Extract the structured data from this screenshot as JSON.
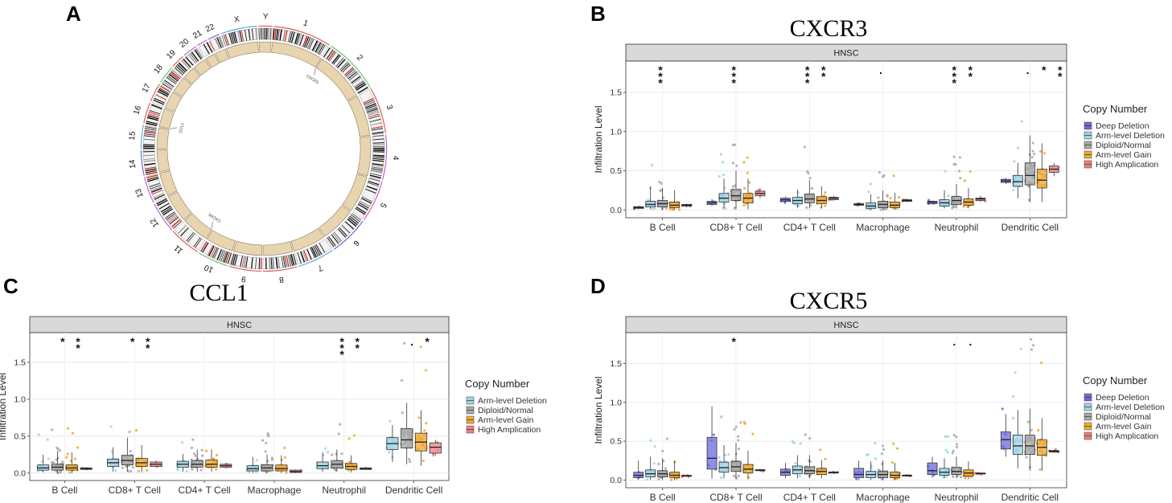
{
  "panel_letters": [
    "A",
    "B",
    "C",
    "D"
  ],
  "circos": {
    "chromosomes": [
      "1",
      "2",
      "3",
      "4",
      "5",
      "6",
      "7",
      "8",
      "9",
      "10",
      "11",
      "12",
      "13",
      "14",
      "15",
      "16",
      "17",
      "18",
      "19",
      "20",
      "21",
      "22",
      "X",
      "Y"
    ],
    "chromosome_sizes": [
      249,
      243,
      198,
      191,
      181,
      171,
      159,
      145,
      138,
      134,
      135,
      133,
      114,
      107,
      102,
      90,
      83,
      80,
      59,
      64,
      47,
      51,
      156,
      57
    ],
    "genes": [
      "CXCR5",
      "CCL1",
      "CXCR3"
    ],
    "colors": {
      "ring_fill": "#e8d5b0",
      "ring_stroke": "#8a7a60"
    }
  },
  "legend": {
    "title": "Copy Number",
    "items": [
      {
        "key": "deep",
        "label": "Deep Deletion",
        "color": "#6a6adc"
      },
      {
        "key": "arm_del",
        "label": "Arm-level Deletion",
        "color": "#9fd3e6"
      },
      {
        "key": "diploid",
        "label": "Diploid/Normal",
        "color": "#a8a8a8"
      },
      {
        "key": "arm_gain",
        "label": "Arm-level Gain",
        "color": "#f0a830"
      },
      {
        "key": "high",
        "label": "High Amplication",
        "color": "#ef7f7f"
      }
    ]
  },
  "chart_data": [
    {
      "panel": "B",
      "type": "boxplot",
      "title": "CXCR3",
      "facet": "HNSC",
      "ylabel": "Infiltration Level",
      "ylim": [
        -0.1,
        1.9
      ],
      "yticks": [
        0.0,
        0.5,
        1.0,
        1.5
      ],
      "categories": [
        "B Cell",
        "CD8+ T Cell",
        "CD4+ T Cell",
        "Macrophage",
        "Neutrophil",
        "Dendritic Cell"
      ],
      "legend_keys": [
        "deep",
        "arm_del",
        "diploid",
        "arm_gain",
        "high"
      ],
      "boxes": [
        [
          [
            0.01,
            0.02,
            0.03,
            0.04,
            0.05
          ],
          [
            0.01,
            0.04,
            0.07,
            0.11,
            0.3
          ],
          [
            0.0,
            0.04,
            0.08,
            0.12,
            0.28
          ],
          [
            0.0,
            0.03,
            0.06,
            0.1,
            0.25
          ],
          [
            0.03,
            0.05,
            0.06,
            0.07,
            0.08
          ]
        ],
        [
          [
            0.05,
            0.07,
            0.09,
            0.11,
            0.14
          ],
          [
            0.02,
            0.1,
            0.15,
            0.21,
            0.4
          ],
          [
            0.02,
            0.12,
            0.18,
            0.26,
            0.5
          ],
          [
            0.01,
            0.09,
            0.15,
            0.21,
            0.4
          ],
          [
            0.15,
            0.18,
            0.21,
            0.24,
            0.28
          ]
        ],
        [
          [
            0.09,
            0.11,
            0.13,
            0.15,
            0.17
          ],
          [
            0.02,
            0.08,
            0.12,
            0.16,
            0.26
          ],
          [
            0.02,
            0.09,
            0.14,
            0.2,
            0.38
          ],
          [
            0.02,
            0.08,
            0.12,
            0.17,
            0.3
          ],
          [
            0.12,
            0.13,
            0.15,
            0.16,
            0.18
          ]
        ],
        [
          [
            0.05,
            0.06,
            0.07,
            0.08,
            0.09
          ],
          [
            0.0,
            0.02,
            0.05,
            0.09,
            0.2
          ],
          [
            0.0,
            0.03,
            0.07,
            0.11,
            0.25
          ],
          [
            0.0,
            0.03,
            0.06,
            0.1,
            0.22
          ],
          [
            0.1,
            0.11,
            0.12,
            0.13,
            0.14
          ]
        ],
        [
          [
            0.07,
            0.08,
            0.1,
            0.11,
            0.12
          ],
          [
            0.02,
            0.05,
            0.09,
            0.13,
            0.25
          ],
          [
            0.02,
            0.07,
            0.12,
            0.17,
            0.33
          ],
          [
            0.02,
            0.06,
            0.1,
            0.14,
            0.28
          ],
          [
            0.1,
            0.12,
            0.14,
            0.15,
            0.18
          ]
        ],
        [
          [
            0.33,
            0.35,
            0.37,
            0.39,
            0.41
          ],
          [
            0.15,
            0.3,
            0.36,
            0.44,
            0.6
          ],
          [
            0.1,
            0.32,
            0.44,
            0.6,
            0.95
          ],
          [
            0.1,
            0.28,
            0.38,
            0.52,
            0.85
          ],
          [
            0.43,
            0.48,
            0.52,
            0.56,
            0.6
          ]
        ]
      ],
      "significance": [
        {
          "category": "B Cell",
          "label": "***"
        },
        {
          "category": "CD8+ T Cell",
          "label": "***"
        },
        {
          "category": "CD4+ T Cell",
          "label": "***"
        },
        {
          "category": "CD4+ T Cell",
          "label": "**"
        },
        {
          "category": "Macrophage",
          "label": "."
        },
        {
          "category": "Neutrophil",
          "label": "***"
        },
        {
          "category": "Neutrophil",
          "label": "**"
        },
        {
          "category": "Dendritic Cell",
          "label": "."
        },
        {
          "category": "Dendritic Cell",
          "label": "*"
        },
        {
          "category": "Dendritic Cell",
          "label": "**"
        }
      ]
    },
    {
      "panel": "C",
      "type": "boxplot",
      "title": "CCL1",
      "facet": "HNSC",
      "ylabel": "Infiltration Level",
      "ylim": [
        -0.1,
        1.9
      ],
      "yticks": [
        0.0,
        0.5,
        1.0,
        1.5
      ],
      "categories": [
        "B Cell",
        "CD8+ T Cell",
        "CD4+ T Cell",
        "Macrophage",
        "Neutrophil",
        "Dendritic Cell"
      ],
      "legend_keys": [
        "arm_del",
        "diploid",
        "arm_gain",
        "high"
      ],
      "boxes": [
        [
          [
            0.01,
            0.04,
            0.07,
            0.11,
            0.25
          ],
          [
            0.0,
            0.04,
            0.08,
            0.12,
            0.3
          ],
          [
            0.0,
            0.04,
            0.07,
            0.11,
            0.28
          ],
          [
            0.04,
            0.05,
            0.06,
            0.07,
            0.08
          ]
        ],
        [
          [
            0.02,
            0.09,
            0.14,
            0.19,
            0.35
          ],
          [
            0.02,
            0.11,
            0.17,
            0.24,
            0.48
          ],
          [
            0.01,
            0.09,
            0.14,
            0.2,
            0.38
          ],
          [
            0.08,
            0.09,
            0.12,
            0.15,
            0.17
          ]
        ],
        [
          [
            0.02,
            0.08,
            0.12,
            0.16,
            0.26
          ],
          [
            0.02,
            0.08,
            0.12,
            0.17,
            0.32
          ],
          [
            0.02,
            0.08,
            0.12,
            0.18,
            0.32
          ],
          [
            0.06,
            0.08,
            0.1,
            0.12,
            0.14
          ]
        ],
        [
          [
            0.0,
            0.03,
            0.06,
            0.1,
            0.22
          ],
          [
            0.0,
            0.03,
            0.07,
            0.11,
            0.25
          ],
          [
            0.0,
            0.03,
            0.06,
            0.11,
            0.24
          ],
          [
            0.0,
            0.01,
            0.02,
            0.04,
            0.05
          ]
        ],
        [
          [
            0.02,
            0.06,
            0.1,
            0.15,
            0.28
          ],
          [
            0.02,
            0.07,
            0.12,
            0.17,
            0.32
          ],
          [
            0.01,
            0.05,
            0.09,
            0.13,
            0.24
          ],
          [
            0.05,
            0.05,
            0.06,
            0.07,
            0.07
          ]
        ],
        [
          [
            0.15,
            0.32,
            0.4,
            0.48,
            0.65
          ],
          [
            0.12,
            0.34,
            0.45,
            0.6,
            0.95
          ],
          [
            0.1,
            0.3,
            0.42,
            0.54,
            0.85
          ],
          [
            0.24,
            0.27,
            0.35,
            0.41,
            0.45
          ]
        ]
      ],
      "significance": [
        {
          "category": "B Cell",
          "label": "*"
        },
        {
          "category": "B Cell",
          "label": "**"
        },
        {
          "category": "CD8+ T Cell",
          "label": "*"
        },
        {
          "category": "CD8+ T Cell",
          "label": "**"
        },
        {
          "category": "Neutrophil",
          "label": "***"
        },
        {
          "category": "Neutrophil",
          "label": "**"
        },
        {
          "category": "Dendritic Cell",
          "label": "."
        },
        {
          "category": "Dendritic Cell",
          "label": "*"
        }
      ]
    },
    {
      "panel": "D",
      "type": "boxplot",
      "title": "CXCR5",
      "facet": "HNSC",
      "ylabel": "Infiltration Level",
      "ylim": [
        -0.1,
        1.9
      ],
      "yticks": [
        0.0,
        0.5,
        1.0,
        1.5
      ],
      "categories": [
        "B Cell",
        "CD8+ T Cell",
        "CD4+ T Cell",
        "Macrophage",
        "Neutrophil",
        "Dendritic Cell"
      ],
      "legend_keys": [
        "deep",
        "arm_del",
        "diploid",
        "arm_gain",
        "high"
      ],
      "boxes": [
        [
          [
            0.0,
            0.03,
            0.06,
            0.1,
            0.25
          ],
          [
            0.0,
            0.04,
            0.08,
            0.13,
            0.3
          ],
          [
            0.0,
            0.04,
            0.08,
            0.12,
            0.28
          ],
          [
            0.0,
            0.03,
            0.06,
            0.1,
            0.25
          ],
          [
            0.04,
            0.05,
            0.05,
            0.06,
            0.06
          ]
        ],
        [
          [
            0.02,
            0.14,
            0.28,
            0.55,
            0.95
          ],
          [
            0.02,
            0.1,
            0.16,
            0.23,
            0.45
          ],
          [
            0.02,
            0.11,
            0.17,
            0.24,
            0.48
          ],
          [
            0.01,
            0.09,
            0.14,
            0.2,
            0.38
          ],
          [
            0.11,
            0.12,
            0.13,
            0.13,
            0.14
          ]
        ],
        [
          [
            0.02,
            0.06,
            0.1,
            0.14,
            0.22
          ],
          [
            0.02,
            0.08,
            0.13,
            0.18,
            0.32
          ],
          [
            0.02,
            0.08,
            0.12,
            0.17,
            0.32
          ],
          [
            0.02,
            0.07,
            0.11,
            0.15,
            0.26
          ],
          [
            0.08,
            0.09,
            0.1,
            0.1,
            0.11
          ]
        ],
        [
          [
            0.0,
            0.03,
            0.07,
            0.15,
            0.25
          ],
          [
            0.0,
            0.03,
            0.07,
            0.11,
            0.24
          ],
          [
            0.0,
            0.03,
            0.07,
            0.11,
            0.25
          ],
          [
            0.0,
            0.03,
            0.06,
            0.1,
            0.22
          ],
          [
            0.05,
            0.05,
            0.06,
            0.06,
            0.07
          ]
        ],
        [
          [
            0.03,
            0.07,
            0.12,
            0.22,
            0.3
          ],
          [
            0.02,
            0.06,
            0.1,
            0.15,
            0.28
          ],
          [
            0.02,
            0.07,
            0.11,
            0.16,
            0.3
          ],
          [
            0.01,
            0.05,
            0.09,
            0.13,
            0.24
          ],
          [
            0.07,
            0.08,
            0.08,
            0.09,
            0.09
          ]
        ],
        [
          [
            0.3,
            0.4,
            0.52,
            0.62,
            0.85
          ],
          [
            0.15,
            0.33,
            0.44,
            0.58,
            0.9
          ],
          [
            0.12,
            0.33,
            0.44,
            0.58,
            0.92
          ],
          [
            0.12,
            0.32,
            0.42,
            0.52,
            0.8
          ],
          [
            0.35,
            0.36,
            0.37,
            0.38,
            0.39
          ]
        ]
      ],
      "significance": [
        {
          "category": "CD8+ T Cell",
          "label": "*"
        },
        {
          "category": "Neutrophil",
          "label": "."
        },
        {
          "category": "Neutrophil",
          "label": "."
        }
      ]
    }
  ]
}
